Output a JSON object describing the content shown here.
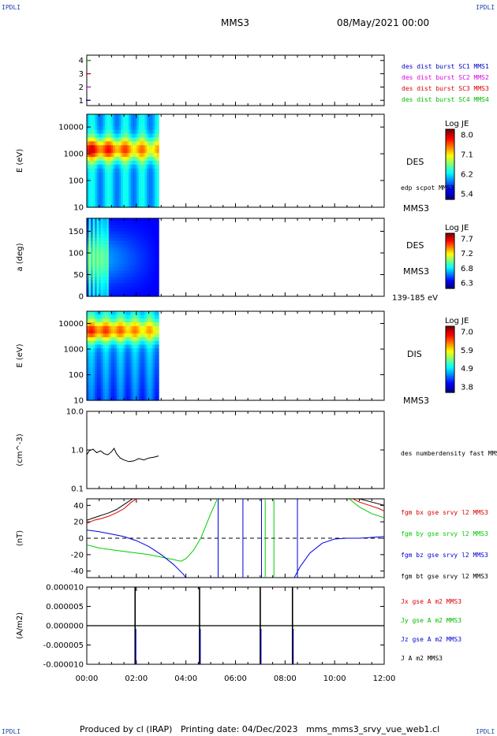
{
  "header": {
    "corner_tl": "IPDLI",
    "corner_tr": "IPDLI",
    "corner_bl": "IPDLI",
    "corner_br": "IPDLI",
    "mission": "MMS3",
    "datetime": "08/May/2021 00:00"
  },
  "footer": {
    "text": "Produced by cl (IRAP)   Printing date: 04/Dec/2023   mms_mms3_srvy_vue_web1.cl"
  },
  "colors": {
    "mms1": "#0000cc",
    "mms2": "#dd00dd",
    "mms3": "#dd0000",
    "mms4": "#00bb00",
    "bx": "#dd0000",
    "by": "#00cc00",
    "bz": "#0000dd",
    "bt": "#000000"
  },
  "chart_data": [
    {
      "id": "burst",
      "type": "scatter",
      "ylim": [
        0.6,
        4.4
      ],
      "yticks": [
        "1",
        "2",
        "3",
        "4"
      ],
      "series": [
        {
          "name": "des dist burst SC1 MMS1",
          "y": 1,
          "color": "#0000cc"
        },
        {
          "name": "des dist burst SC2 MMS2",
          "y": 2,
          "color": "#dd00dd"
        },
        {
          "name": "des dist burst SC3 MMS3",
          "y": 3,
          "color": "#dd0000"
        },
        {
          "name": "des dist burst SC4 MMS4",
          "y": 4,
          "color": "#00bb00"
        }
      ],
      "legend": "right"
    },
    {
      "id": "des_energy",
      "type": "heatmap",
      "ylabel": "E (eV)",
      "yscale": "log",
      "ylim": [
        10,
        30000
      ],
      "yticks": [
        "10",
        "100",
        "1000",
        "10000"
      ],
      "data_end_hour": 2.9,
      "colorbar": {
        "title": "Log JE",
        "ticks": [
          "8.0",
          "7.1",
          "6.2",
          "5.4"
        ]
      },
      "side_labels": [
        "DES",
        "edp scpot MMS3",
        "MMS3"
      ]
    },
    {
      "id": "des_pitch",
      "type": "heatmap",
      "ylabel": "a (deg)",
      "ylim": [
        0,
        180
      ],
      "yticks": [
        "0",
        "50",
        "100",
        "150"
      ],
      "data_end_hour": 2.9,
      "colorbar": {
        "title": "Log JE",
        "ticks": [
          "7.7",
          "7.2",
          "6.8",
          "6.3"
        ]
      },
      "side_labels": [
        "DES",
        "MMS3",
        "139-185 eV"
      ]
    },
    {
      "id": "dis_energy",
      "type": "heatmap",
      "ylabel": "E (eV)",
      "yscale": "log",
      "ylim": [
        10,
        30000
      ],
      "yticks": [
        "10",
        "100",
        "1000",
        "10000"
      ],
      "data_end_hour": 2.9,
      "colorbar": {
        "title": "Log JE",
        "ticks": [
          "7.0",
          "5.9",
          "4.9",
          "3.8"
        ]
      },
      "side_labels": [
        "DIS",
        "MMS3"
      ]
    },
    {
      "id": "density",
      "type": "line",
      "ylabel": "(cm^-3)",
      "yscale": "log",
      "ylim": [
        0.1,
        10
      ],
      "yticks": [
        "0.1",
        "1.0",
        "10.0"
      ],
      "series": [
        {
          "name": "des numberdensity fast MMS3",
          "color": "#000000",
          "x": [
            0.0,
            0.1,
            0.25,
            0.4,
            0.55,
            0.7,
            0.85,
            1.0,
            1.1,
            1.2,
            1.35,
            1.5,
            1.7,
            1.9,
            2.1,
            2.3,
            2.5,
            2.7,
            2.9
          ],
          "y": [
            0.75,
            0.95,
            1.05,
            0.85,
            0.95,
            0.8,
            0.75,
            0.9,
            1.1,
            0.8,
            0.62,
            0.55,
            0.5,
            0.52,
            0.6,
            0.55,
            0.62,
            0.65,
            0.7
          ]
        }
      ]
    },
    {
      "id": "bfield",
      "type": "line",
      "ylabel": "(nT)",
      "ylim": [
        -48,
        48
      ],
      "yticks": [
        "-40",
        "-20",
        "0",
        "20",
        "40"
      ],
      "zero_line": "dashed",
      "series": [
        {
          "name": "fgm bx gse srvy l2 MMS3",
          "color": "#dd0000",
          "x": [
            0,
            0.3,
            0.6,
            0.9,
            1.2,
            1.5,
            1.8,
            2.1,
            10.6,
            11.0,
            11.4,
            11.8,
            12.0
          ],
          "y": [
            18,
            22,
            24,
            27,
            31,
            36,
            44,
            50,
            50,
            44,
            40,
            36,
            33
          ]
        },
        {
          "name": "fgm by gse srvy l2 MMS3",
          "color": "#00cc00",
          "x": [
            0,
            0.5,
            1.0,
            1.5,
            2.0,
            2.5,
            3.0,
            3.5,
            3.8,
            4.0,
            4.3,
            4.6,
            5.0,
            5.3,
            10.5,
            11.0,
            11.5,
            12.0
          ],
          "y": [
            -8,
            -12,
            -14,
            -16,
            -18,
            -20,
            -23,
            -26,
            -28,
            -25,
            -15,
            0,
            30,
            50,
            50,
            38,
            30,
            25
          ]
        },
        {
          "name": "fgm bz gse srvy l2 MMS3",
          "color": "#0000dd",
          "x": [
            0,
            0.5,
            1.0,
            1.5,
            2.0,
            2.5,
            3.0,
            3.5,
            3.9,
            4.1,
            8.3,
            8.6,
            9.0,
            9.5,
            10.0,
            10.5,
            11.0,
            11.5,
            12.0
          ],
          "y": [
            10,
            8,
            5,
            2,
            -3,
            -10,
            -20,
            -32,
            -44,
            -52,
            -52,
            -35,
            -18,
            -6,
            -1,
            0,
            0,
            1,
            2
          ]
        },
        {
          "name": "fgm bt gse srvy l2 MMS3",
          "color": "#000000",
          "x": [
            0,
            0.3,
            0.6,
            0.9,
            1.2,
            1.5,
            1.8,
            2.0,
            10.5,
            11.0,
            11.5,
            12.0
          ],
          "y": [
            22,
            25,
            28,
            31,
            35,
            41,
            47,
            52,
            52,
            48,
            44,
            40
          ]
        }
      ]
    },
    {
      "id": "current",
      "type": "line",
      "ylabel": "(A/m2)",
      "ylim": [
        -1e-05,
        1e-05
      ],
      "yticks": [
        "-0.000010",
        "-0.000005",
        "0.000000",
        "0.000005",
        "0.000010"
      ],
      "series": [
        {
          "name": "Jx gse A m2 MMS3",
          "color": "#dd0000"
        },
        {
          "name": "Jy gse A m2 MMS3",
          "color": "#00bb00"
        },
        {
          "name": "Jz gse A m2 MMS3",
          "color": "#0000dd"
        },
        {
          "name": "J A m2 MMS3",
          "color": "#000000"
        }
      ],
      "spikes_hours": [
        1.95,
        4.55,
        7.0,
        8.3
      ]
    }
  ],
  "xaxis": {
    "range_hours": [
      0,
      12
    ],
    "ticks": [
      "00:00",
      "02:00",
      "04:00",
      "06:00",
      "08:00",
      "10:00",
      "12:00"
    ]
  }
}
